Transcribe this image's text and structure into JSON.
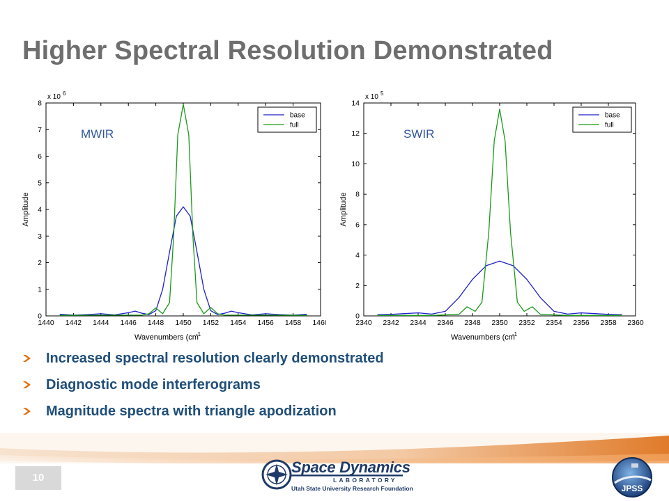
{
  "slide": {
    "title": "Higher Spectral Resolution Demonstrated",
    "page_number": "10",
    "bullets": [
      "Increased spectral resolution clearly demonstrated",
      "Diagnostic mode interferograms",
      "Magnitude spectra with triangle apodization"
    ],
    "footer": {
      "lab_name": "Space Dynamics",
      "lab_word": "LABORATORY",
      "foundation": "Utah State University Research Foundation",
      "jpss": "JPSS"
    }
  },
  "colors": {
    "base": "#1f1fcc",
    "full": "#1a9a1a",
    "title": "#6e6e6e",
    "bullet_text": "#1f4e79",
    "arrow": "#e46c0a"
  },
  "chart_data": [
    {
      "type": "line",
      "band_label": "MWIR",
      "exponent_label": "x 10",
      "exponent": "6",
      "xlabel": "Wavenumbers (cm",
      "xlabel_sup": "-1",
      "ylabel": "Amplitude",
      "xlim": [
        1440,
        1460
      ],
      "ylim": [
        0,
        8
      ],
      "xticks": [
        1440,
        1442,
        1444,
        1446,
        1448,
        1450,
        1452,
        1454,
        1456,
        1458,
        1460
      ],
      "xtick_labels": [
        "1440",
        "1442",
        "1444",
        "1446",
        "1448",
        "1450",
        "1452",
        "1454",
        "1456",
        "1458",
        "1460"
      ],
      "yticks": [
        0,
        1,
        2,
        3,
        4,
        5,
        6,
        7,
        8
      ],
      "ytick_labels": [
        "0",
        "1",
        "2",
        "3",
        "4",
        "5",
        "6",
        "7",
        "8"
      ],
      "legend": "top-right",
      "grid": false,
      "series": [
        {
          "name": "base",
          "color": "#1f1fcc",
          "x": [
            1441,
            1442,
            1443,
            1444,
            1445,
            1446,
            1446.5,
            1447,
            1447.5,
            1448,
            1448.5,
            1449,
            1449.5,
            1450,
            1450.5,
            1451,
            1451.5,
            1452,
            1452.5,
            1453,
            1453.5,
            1454,
            1455,
            1456,
            1457,
            1458,
            1459
          ],
          "y": [
            0.06,
            0.03,
            0.05,
            0.08,
            0.04,
            0.12,
            0.18,
            0.1,
            0.05,
            0.2,
            1.0,
            2.4,
            3.75,
            4.1,
            3.75,
            2.4,
            1.0,
            0.2,
            0.05,
            0.1,
            0.18,
            0.12,
            0.04,
            0.08,
            0.05,
            0.03,
            0.06
          ]
        },
        {
          "name": "full",
          "color": "#1a9a1a",
          "x": [
            1441,
            1444,
            1447,
            1447.5,
            1448,
            1448.5,
            1449,
            1449.3,
            1449.6,
            1450,
            1450.4,
            1450.7,
            1451,
            1451.5,
            1452,
            1452.5,
            1453,
            1456,
            1459
          ],
          "y": [
            0.02,
            0.03,
            0.03,
            0.08,
            0.3,
            0.08,
            0.5,
            3.0,
            6.8,
            7.95,
            6.8,
            3.0,
            0.5,
            0.08,
            0.32,
            0.08,
            0.03,
            0.03,
            0.02
          ]
        }
      ]
    },
    {
      "type": "line",
      "band_label": "SWIR",
      "exponent_label": "x 10",
      "exponent": "5",
      "xlabel": "Wavenumbers (cm",
      "xlabel_sup": "-1",
      "ylabel": "Amplitude",
      "xlim": [
        2340,
        2360
      ],
      "ylim": [
        0,
        14
      ],
      "xticks": [
        2340,
        2342,
        2344,
        2346,
        2348,
        2350,
        2352,
        2354,
        2356,
        2358,
        2360
      ],
      "xtick_labels": [
        "2340",
        "2342",
        "2344",
        "2346",
        "2348",
        "2350",
        "2352",
        "2354",
        "2356",
        "2358",
        "2360"
      ],
      "yticks": [
        0,
        2,
        4,
        6,
        8,
        10,
        12,
        14
      ],
      "ytick_labels": [
        "0",
        "2",
        "4",
        "6",
        "8",
        "10",
        "12",
        "14"
      ],
      "legend": "top-right",
      "grid": false,
      "series": [
        {
          "name": "base",
          "color": "#1f1fcc",
          "x": [
            2341,
            2342,
            2343,
            2344,
            2345,
            2346,
            2347,
            2348,
            2349,
            2350,
            2351,
            2352,
            2353,
            2354,
            2355,
            2356,
            2357,
            2358,
            2359
          ],
          "y": [
            0.08,
            0.1,
            0.15,
            0.2,
            0.12,
            0.3,
            1.2,
            2.4,
            3.3,
            3.6,
            3.3,
            2.4,
            1.2,
            0.3,
            0.12,
            0.2,
            0.15,
            0.1,
            0.08
          ]
        },
        {
          "name": "full",
          "color": "#1a9a1a",
          "x": [
            2341,
            2345,
            2347,
            2347.6,
            2348.2,
            2348.7,
            2349.2,
            2349.6,
            2350,
            2350.4,
            2350.8,
            2351.3,
            2351.8,
            2352.4,
            2353,
            2355,
            2359
          ],
          "y": [
            0.03,
            0.03,
            0.1,
            0.6,
            0.3,
            0.9,
            5.5,
            11.5,
            13.6,
            11.5,
            5.5,
            0.9,
            0.3,
            0.6,
            0.1,
            0.03,
            0.03
          ]
        }
      ]
    }
  ]
}
